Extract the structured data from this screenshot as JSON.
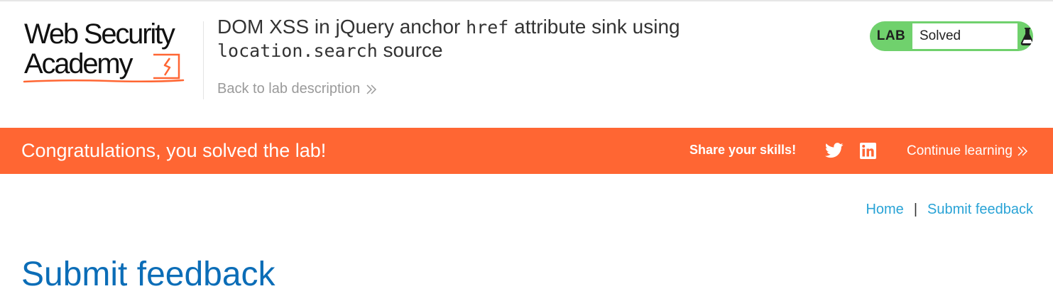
{
  "header": {
    "logo": {
      "line1": "Web Security",
      "line2": "Academy"
    },
    "title": {
      "part1": "DOM XSS in jQuery anchor ",
      "code1": "href",
      "part2": " attribute sink using",
      "code2": "location.search",
      "part3": " source"
    },
    "back_link": "Back to lab description",
    "status": {
      "label": "LAB",
      "value": "Solved",
      "icon": "flask-icon"
    }
  },
  "banner": {
    "message": "Congratulations, you solved the lab!",
    "share_label": "Share your skills!",
    "share_icons": [
      "twitter-icon",
      "linkedin-icon"
    ],
    "continue_label": "Continue learning"
  },
  "nav": {
    "home": "Home",
    "separator": "|",
    "feedback": "Submit feedback"
  },
  "page": {
    "title": "Submit feedback"
  },
  "colors": {
    "accent_orange": "#ff6633",
    "status_green": "#70d16d",
    "link_blue": "#29a3d6",
    "heading_blue": "#0b6db7"
  }
}
